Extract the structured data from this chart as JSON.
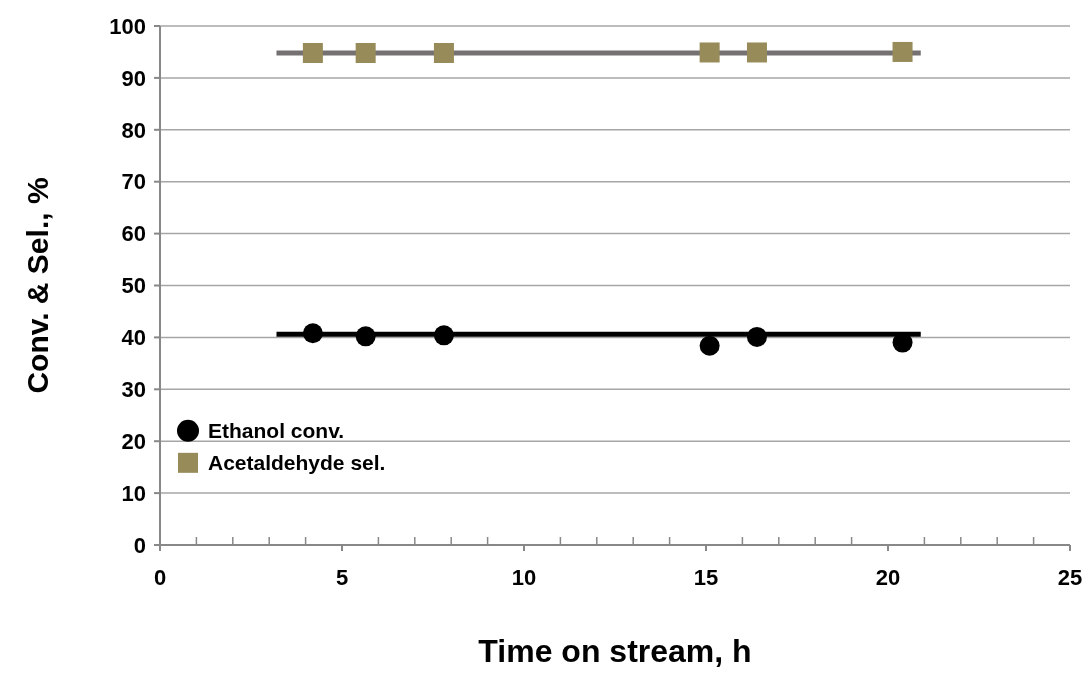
{
  "chart_data": {
    "type": "scatter",
    "xlabel": "Time on stream, h",
    "ylabel": "Conv. & Sel., %",
    "xlim": [
      0,
      25
    ],
    "ylim": [
      0,
      100
    ],
    "xticks": [
      0,
      {
        "value": 1,
        "label": null
      },
      {
        "value": 2,
        "label": null
      },
      {
        "value": 3,
        "label": null
      },
      {
        "value": 4,
        "label": null
      },
      5,
      {
        "value": 6,
        "label": null
      },
      {
        "value": 7,
        "label": null
      },
      {
        "value": 8,
        "label": null
      },
      {
        "value": 9,
        "label": null
      },
      10,
      {
        "value": 11,
        "label": null
      },
      {
        "value": 12,
        "label": null
      },
      {
        "value": 13,
        "label": null
      },
      {
        "value": 14,
        "label": null
      },
      15,
      {
        "value": 16,
        "label": null
      },
      {
        "value": 17,
        "label": null
      },
      {
        "value": 18,
        "label": null
      },
      {
        "value": 19,
        "label": null
      },
      20,
      {
        "value": 21,
        "label": null
      },
      {
        "value": 22,
        "label": null
      },
      {
        "value": 23,
        "label": null
      },
      {
        "value": 24,
        "label": null
      },
      25
    ],
    "yticks": [
      0,
      10,
      20,
      30,
      40,
      50,
      60,
      70,
      80,
      90,
      100
    ],
    "grid": "y",
    "legend": "bottom left",
    "series": [
      {
        "type": "line",
        "color": "#000000",
        "x": [
          3.2,
          20.9
        ],
        "values": [
          40.6,
          40.6
        ],
        "marker": "none"
      },
      {
        "type": "line",
        "color": "#757171",
        "x": [
          3.2,
          20.9
        ],
        "values": [
          94.8,
          94.8
        ],
        "marker": "none"
      },
      {
        "name": "Ethanol conv.",
        "color": "#000000",
        "marker": "circle",
        "x": [
          4.2,
          5.65,
          7.8,
          15.1,
          16.4,
          20.4
        ],
        "values": [
          40.8,
          40.2,
          40.4,
          38.4,
          40.1,
          39.0
        ]
      },
      {
        "name": "Acetaldehyde sel.",
        "color": "#978b59",
        "marker": "square",
        "x": [
          4.2,
          5.65,
          7.8,
          15.1,
          16.4,
          20.4
        ],
        "values": [
          94.8,
          94.8,
          94.8,
          94.9,
          94.9,
          95.0
        ]
      }
    ]
  }
}
